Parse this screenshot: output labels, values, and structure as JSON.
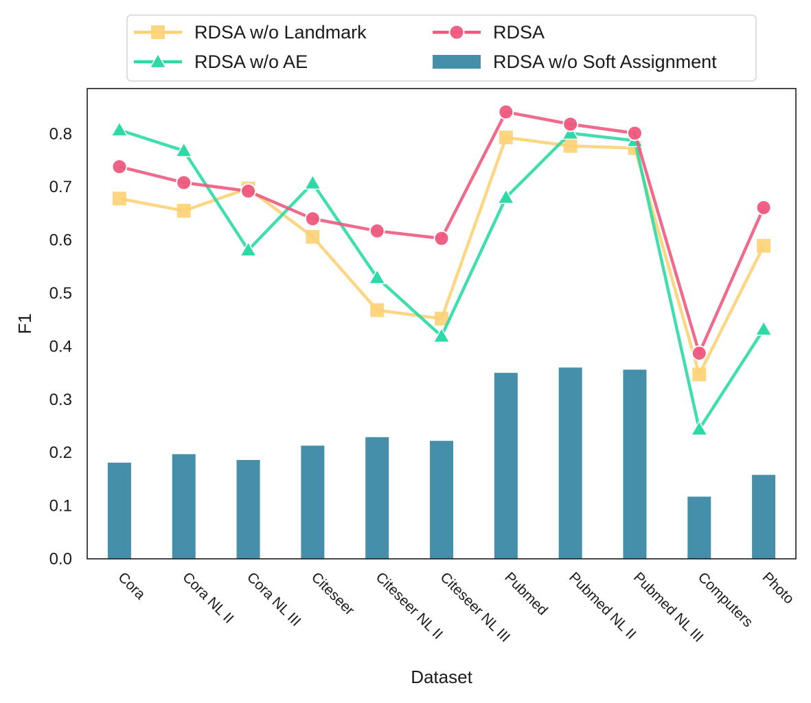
{
  "chart_data": {
    "type": "bar+line",
    "title": "",
    "xlabel": "Dataset",
    "ylabel": "F1",
    "ylim": [
      0.0,
      0.885
    ],
    "yticks": [
      "0.0",
      "0.1",
      "0.2",
      "0.3",
      "0.4",
      "0.5",
      "0.6",
      "0.7",
      "0.8"
    ],
    "grid": false,
    "legend_position": "top (outside, above plot)",
    "categories": [
      "Cora",
      "Cora NL II",
      "Cora NL III",
      "Citeseer",
      "Citeseer NL II",
      "Citeseer NL III",
      "Pubmed",
      "Pubmed NL II",
      "Pubmed NL III",
      "Computers",
      "Photo"
    ],
    "series": [
      {
        "name": "RDSA w/o Soft Assignment",
        "type": "bar",
        "color": "#2b7f9e",
        "values": [
          0.181,
          0.197,
          0.186,
          0.213,
          0.229,
          0.222,
          0.35,
          0.36,
          0.356,
          0.117,
          0.158
        ]
      },
      {
        "name": "RDSA w/o Landmark",
        "type": "line",
        "marker": "square",
        "color": "#fdd275",
        "values": [
          0.678,
          0.655,
          0.697,
          0.606,
          0.468,
          0.452,
          0.793,
          0.777,
          0.773,
          0.347,
          0.589
        ]
      },
      {
        "name": "RDSA w/o AE",
        "type": "line",
        "marker": "triangle",
        "color": "#2bdaa6",
        "values": [
          0.807,
          0.768,
          0.581,
          0.707,
          0.529,
          0.419,
          0.68,
          0.801,
          0.787,
          0.244,
          0.432
        ]
      },
      {
        "name": "RDSA",
        "type": "line",
        "marker": "circle",
        "color": "#ee5a7e",
        "values": [
          0.738,
          0.708,
          0.692,
          0.64,
          0.617,
          0.603,
          0.841,
          0.818,
          0.801,
          0.387,
          0.661
        ]
      }
    ],
    "legend_order": [
      "RDSA w/o Landmark",
      "RDSA",
      "RDSA w/o AE",
      "RDSA w/o Soft Assignment"
    ]
  }
}
